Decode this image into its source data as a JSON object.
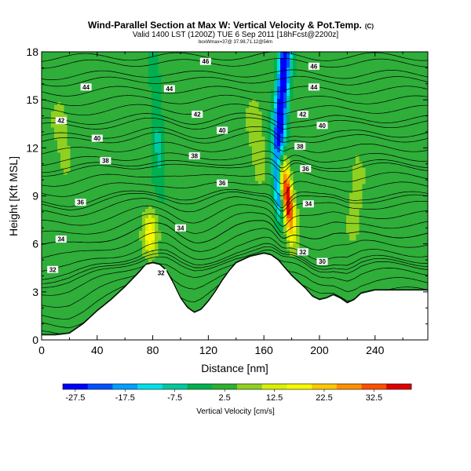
{
  "chart_data": {
    "type": "heatmap",
    "title": "Wind-Parallel Section at Max W: Vertical Velocity & Pot.Temp.",
    "title_mark": "(C)",
    "subtitle": "Valid 1400 LST (1200Z) TUE 6 Sep 2011 [18hFcst@2200z]",
    "subtitle2": "boxWmax=37@ 37.98,71.12@54m",
    "xlabel": "Distance [nm]",
    "ylabel": "Height [Kft MSL]",
    "xlim": [
      0,
      278
    ],
    "ylim": [
      0,
      18
    ],
    "x_ticks": [
      0,
      40,
      80,
      120,
      160,
      200,
      240
    ],
    "y_ticks": [
      0,
      3,
      6,
      9,
      12,
      15,
      18
    ],
    "colorbar": {
      "label": "Vertical Velocity [cm/s]",
      "tick_labels": [
        "-27.5",
        "-17.5",
        "-7.5",
        "2.5",
        "12.5",
        "22.5",
        "32.5"
      ],
      "levels": [
        -30,
        -25,
        -20,
        -15,
        -10,
        -5,
        0,
        5,
        10,
        15,
        20,
        25,
        30,
        35,
        40
      ],
      "colors": [
        "#0000ff",
        "#0050ff",
        "#00a0ff",
        "#00e0e8",
        "#00c8a0",
        "#00b050",
        "#30b030",
        "#90d020",
        "#d8f000",
        "#f8f800",
        "#ffc800",
        "#ff9000",
        "#ff5000",
        "#e00000"
      ]
    },
    "terrain_profile": {
      "x": [
        0,
        10,
        20,
        30,
        40,
        50,
        60,
        70,
        75,
        80,
        85,
        90,
        95,
        100,
        105,
        110,
        115,
        120,
        125,
        130,
        135,
        140,
        150,
        160,
        165,
        170,
        175,
        180,
        185,
        190,
        195,
        200,
        205,
        210,
        215,
        220,
        225,
        230,
        240,
        250,
        260,
        270,
        278
      ],
      "height": [
        0.3,
        0.3,
        0.4,
        1.0,
        1.8,
        2.5,
        3.3,
        4.2,
        4.7,
        4.8,
        4.7,
        4.3,
        3.5,
        2.6,
        2.0,
        1.7,
        1.9,
        2.4,
        3.0,
        3.7,
        4.3,
        4.8,
        5.2,
        5.4,
        5.3,
        5.0,
        4.5,
        4.0,
        3.6,
        3.2,
        2.7,
        2.5,
        2.6,
        2.8,
        2.6,
        2.3,
        2.5,
        2.9,
        3.1,
        3.1,
        3.1,
        3.1,
        3.1
      ]
    },
    "isentropes": [
      {
        "theta": "30",
        "label_x": 202,
        "label_y": 4.9
      },
      {
        "theta": "32",
        "label_x": 8,
        "label_y": 4.4,
        "label_x2": 188,
        "label_y2": 5.5
      },
      {
        "theta": "32",
        "label_x": 86,
        "label_y": 4.2
      },
      {
        "theta": "34",
        "label_x": 14,
        "label_y": 6.3,
        "label_x2": 100,
        "label_y2": 7.0,
        "label_x3": 192,
        "label_y3": 8.5
      },
      {
        "theta": "36",
        "label_x": 28,
        "label_y": 8.6,
        "label_x2": 130,
        "label_y2": 9.8,
        "label_x3": 190,
        "label_y3": 10.7
      },
      {
        "theta": "38",
        "label_x": 46,
        "label_y": 11.2,
        "label_x2": 110,
        "label_y2": 11.5,
        "label_x3": 186,
        "label_y3": 12.1
      },
      {
        "theta": "40",
        "label_x": 40,
        "label_y": 12.6,
        "label_x2": 130,
        "label_y2": 13.1,
        "label_x3": 202,
        "label_y3": 13.4
      },
      {
        "theta": "42",
        "label_x": 14,
        "label_y": 13.7,
        "label_x2": 112,
        "label_y2": 14.1,
        "label_x3": 188,
        "label_y3": 14.1
      },
      {
        "theta": "44",
        "label_x": 32,
        "label_y": 15.8,
        "label_x2": 92,
        "label_y2": 15.7,
        "label_x3": 196,
        "label_y3": 15.8
      },
      {
        "theta": "46",
        "label_x": 118,
        "label_y": 17.4,
        "label_x2": 196,
        "label_y2": 17.1
      }
    ]
  }
}
